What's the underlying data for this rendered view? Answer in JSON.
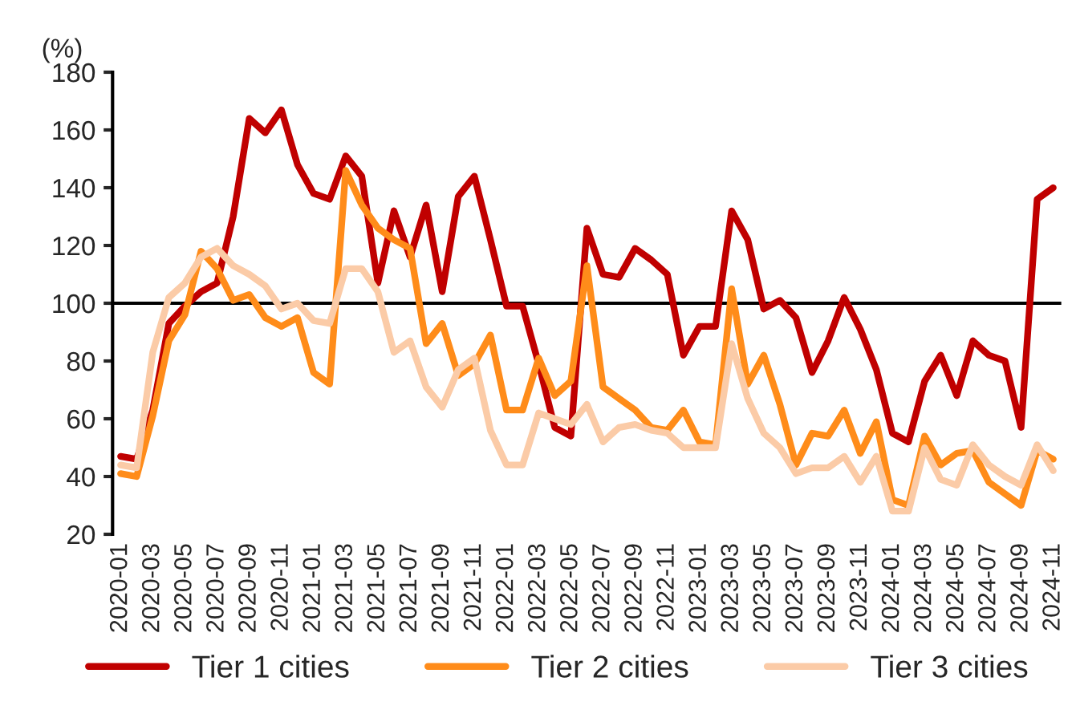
{
  "chart_data": {
    "type": "line",
    "ylabel": "(%)",
    "categories": [
      "2020-01",
      null,
      "2020-03",
      null,
      "2020-05",
      null,
      "2020-07",
      null,
      "2020-09",
      null,
      "2020-11",
      null,
      "2021-01",
      null,
      "2021-03",
      null,
      "2021-05",
      null,
      "2021-07",
      null,
      "2021-09",
      null,
      "2021-11",
      null,
      "2022-01",
      null,
      "2022-03",
      null,
      "2022-05",
      null,
      "2022-07",
      null,
      "2022-09",
      null,
      "2022-11",
      null,
      "2023-01",
      null,
      "2023-03",
      null,
      "2023-05",
      null,
      "2023-07",
      null,
      "2023-09",
      null,
      "2023-11",
      null,
      "2024-01",
      null,
      "2024-03",
      null,
      "2024-05",
      null,
      "2024-07",
      null,
      "2024-09",
      null,
      "2024-11"
    ],
    "series": [
      {
        "name": "Tier 1 cities",
        "color": "#c00000",
        "values": [
          47,
          46,
          63,
          93,
          99,
          104,
          107,
          130,
          164,
          159,
          167,
          148,
          138,
          136,
          151,
          144,
          107,
          132,
          116,
          134,
          104,
          137,
          144,
          122,
          99,
          99,
          79,
          57,
          54,
          126,
          110,
          109,
          119,
          115,
          110,
          82,
          92,
          92,
          132,
          122,
          98,
          101,
          95,
          76,
          87,
          102,
          91,
          77,
          55,
          52,
          73,
          82,
          68,
          87,
          82,
          80,
          57,
          136,
          140
        ]
      },
      {
        "name": "Tier 2 cities",
        "color": "#ff8c1a",
        "values": [
          41,
          40,
          61,
          87,
          96,
          118,
          112,
          101,
          103,
          95,
          92,
          95,
          76,
          72,
          146,
          134,
          126,
          122,
          119,
          86,
          93,
          75,
          79,
          89,
          63,
          63,
          81,
          68,
          73,
          113,
          71,
          67,
          63,
          57,
          56,
          63,
          52,
          51,
          105,
          72,
          82,
          65,
          44,
          55,
          54,
          63,
          48,
          59,
          32,
          30,
          54,
          44,
          48,
          49,
          38,
          34,
          30,
          49,
          46
        ]
      },
      {
        "name": "Tier 3 cities",
        "color": "#fbcba7",
        "values": [
          44,
          43,
          83,
          102,
          107,
          116,
          119,
          113,
          110,
          106,
          98,
          100,
          94,
          93,
          112,
          112,
          104,
          83,
          87,
          71,
          64,
          77,
          81,
          56,
          44,
          44,
          62,
          60,
          58,
          65,
          52,
          57,
          58,
          56,
          55,
          50,
          50,
          50,
          86,
          67,
          55,
          50,
          41,
          43,
          43,
          47,
          38,
          47,
          28,
          28,
          50,
          39,
          37,
          51,
          44,
          40,
          37,
          51,
          42
        ]
      }
    ],
    "ylim": [
      20,
      180
    ],
    "yticks": [
      20,
      40,
      60,
      80,
      100,
      120,
      140,
      160,
      180
    ],
    "ref_lines": [
      {
        "axis": "y",
        "value": 100,
        "color": "#000000"
      }
    ],
    "grid": false,
    "legend": "bottom",
    "marker": "none",
    "line_style": "solid"
  }
}
